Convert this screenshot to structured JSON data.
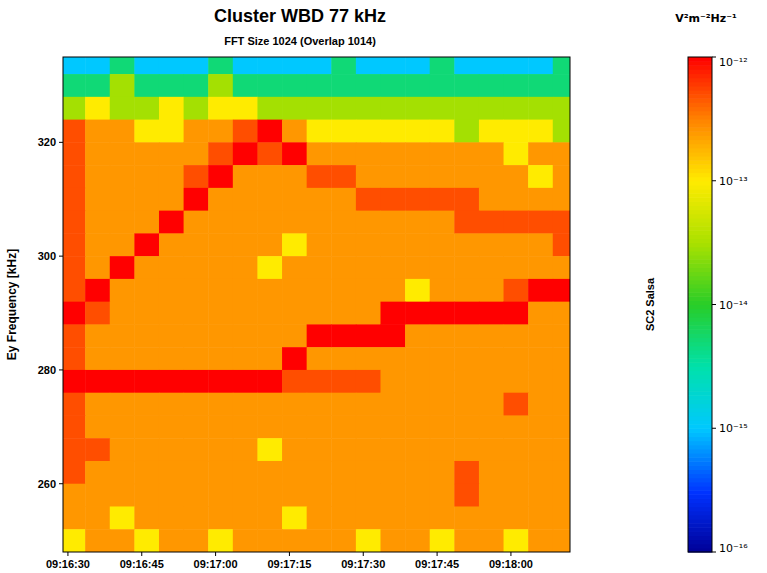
{
  "chart_data": {
    "type": "heatmap",
    "title": "Cluster WBD 77 kHz",
    "subtitle": "FFT Size 1024 (Overlap 1014)",
    "y_label": "Ey Frequency [kHz]",
    "x": [
      33391,
      33396,
      33401,
      33406,
      33411,
      33416,
      33421,
      33426,
      33431,
      33436,
      33441,
      33446,
      33451,
      33456,
      33461,
      33466,
      33471,
      33476,
      33481,
      33486,
      33491
    ],
    "y": [
      334,
      330,
      326,
      322,
      318,
      314,
      310,
      306,
      302,
      298,
      294,
      290,
      286,
      282,
      278,
      274,
      270,
      266,
      262,
      258,
      254,
      250
    ],
    "values": [
      [
        1e-15,
        1e-15,
        5e-15,
        1e-15,
        1e-15,
        1e-15,
        5e-15,
        1e-15,
        1e-15,
        1e-15,
        1e-15,
        5e-15,
        1e-15,
        1e-15,
        1e-15,
        5e-15,
        1e-15,
        1e-15,
        1e-15,
        1e-15,
        5e-15
      ],
      [
        5e-15,
        5e-15,
        3e-14,
        5e-15,
        5e-15,
        5e-15,
        3e-14,
        5e-15,
        5e-15,
        5e-15,
        5e-15,
        5e-15,
        5e-15,
        5e-15,
        5e-15,
        5e-15,
        5e-15,
        5e-15,
        5e-15,
        5e-15,
        5e-15
      ],
      [
        3e-14,
        1e-13,
        3e-14,
        3e-14,
        1e-13,
        3e-14,
        1e-13,
        1e-13,
        3e-14,
        3e-14,
        3e-14,
        3e-14,
        3e-14,
        3e-14,
        3e-14,
        3e-14,
        3e-14,
        3e-14,
        3e-14,
        3e-14,
        3e-14
      ],
      [
        5e-13,
        2.5e-13,
        2.5e-13,
        1e-13,
        1e-13,
        2.5e-13,
        2.5e-13,
        5e-13,
        1e-12,
        2.5e-13,
        1e-13,
        1e-13,
        1e-13,
        1e-13,
        1e-13,
        1e-13,
        3e-14,
        1e-13,
        1e-13,
        1e-13,
        3e-14
      ],
      [
        5e-13,
        2.5e-13,
        2.5e-13,
        2.5e-13,
        2.5e-13,
        2.5e-13,
        5e-13,
        1e-12,
        5e-13,
        1e-12,
        2.5e-13,
        2.5e-13,
        2.5e-13,
        2.5e-13,
        2.5e-13,
        2.5e-13,
        2.5e-13,
        2.5e-13,
        1e-13,
        2.5e-13,
        2.5e-13
      ],
      [
        5e-13,
        2.5e-13,
        2.5e-13,
        2.5e-13,
        2.5e-13,
        5e-13,
        1e-12,
        2.5e-13,
        2.5e-13,
        2.5e-13,
        5e-13,
        5e-13,
        2.5e-13,
        2.5e-13,
        2.5e-13,
        2.5e-13,
        2.5e-13,
        2.5e-13,
        2.5e-13,
        1e-13,
        2.5e-13
      ],
      [
        5e-13,
        2.5e-13,
        2.5e-13,
        2.5e-13,
        2.5e-13,
        1e-12,
        2.5e-13,
        2.5e-13,
        2.5e-13,
        2.5e-13,
        2.5e-13,
        2.5e-13,
        5e-13,
        5e-13,
        5e-13,
        5e-13,
        5e-13,
        2.5e-13,
        2.5e-13,
        2.5e-13,
        2.5e-13
      ],
      [
        5e-13,
        2.5e-13,
        2.5e-13,
        2.5e-13,
        1e-12,
        2.5e-13,
        2.5e-13,
        2.5e-13,
        2.5e-13,
        2.5e-13,
        2.5e-13,
        2.5e-13,
        2.5e-13,
        2.5e-13,
        2.5e-13,
        2.5e-13,
        5e-13,
        5e-13,
        5e-13,
        5e-13,
        5e-13
      ],
      [
        5e-13,
        2.5e-13,
        2.5e-13,
        1e-12,
        2.5e-13,
        2.5e-13,
        2.5e-13,
        2.5e-13,
        2.5e-13,
        1e-13,
        2.5e-13,
        2.5e-13,
        2.5e-13,
        2.5e-13,
        2.5e-13,
        2.5e-13,
        2.5e-13,
        2.5e-13,
        2.5e-13,
        2.5e-13,
        5e-13
      ],
      [
        5e-13,
        2.5e-13,
        1e-12,
        2.5e-13,
        2.5e-13,
        2.5e-13,
        2.5e-13,
        2.5e-13,
        1e-13,
        2.5e-13,
        2.5e-13,
        2.5e-13,
        2.5e-13,
        2.5e-13,
        2.5e-13,
        2.5e-13,
        2.5e-13,
        2.5e-13,
        2.5e-13,
        2.5e-13,
        2.5e-13
      ],
      [
        5e-13,
        1e-12,
        2.5e-13,
        2.5e-13,
        2.5e-13,
        2.5e-13,
        2.5e-13,
        2.5e-13,
        2.5e-13,
        2.5e-13,
        2.5e-13,
        2.5e-13,
        2.5e-13,
        2.5e-13,
        1e-13,
        2.5e-13,
        2.5e-13,
        2.5e-13,
        5e-13,
        1e-12,
        1e-12
      ],
      [
        1e-12,
        5e-13,
        2.5e-13,
        2.5e-13,
        2.5e-13,
        2.5e-13,
        2.5e-13,
        2.5e-13,
        2.5e-13,
        2.5e-13,
        2.5e-13,
        2.5e-13,
        2.5e-13,
        1e-12,
        1e-12,
        1e-12,
        1e-12,
        1e-12,
        1e-12,
        2.5e-13,
        2.5e-13
      ],
      [
        5e-13,
        2.5e-13,
        2.5e-13,
        2.5e-13,
        2.5e-13,
        2.5e-13,
        2.5e-13,
        2.5e-13,
        2.5e-13,
        2.5e-13,
        1e-12,
        1e-12,
        1e-12,
        1e-12,
        2.5e-13,
        2.5e-13,
        2.5e-13,
        2.5e-13,
        2.5e-13,
        2.5e-13,
        2.5e-13
      ],
      [
        5e-13,
        2.5e-13,
        2.5e-13,
        2.5e-13,
        2.5e-13,
        2.5e-13,
        2.5e-13,
        2.5e-13,
        2.5e-13,
        1e-12,
        2.5e-13,
        2.5e-13,
        2.5e-13,
        2.5e-13,
        2.5e-13,
        2.5e-13,
        2.5e-13,
        2.5e-13,
        2.5e-13,
        2.5e-13,
        2.5e-13
      ],
      [
        1e-12,
        1e-12,
        1e-12,
        1e-12,
        1e-12,
        1e-12,
        1e-12,
        1e-12,
        1e-12,
        5e-13,
        5e-13,
        5e-13,
        5e-13,
        2.5e-13,
        2.5e-13,
        2.5e-13,
        2.5e-13,
        2.5e-13,
        2.5e-13,
        2.5e-13,
        2.5e-13
      ],
      [
        5e-13,
        2.5e-13,
        2.5e-13,
        2.5e-13,
        2.5e-13,
        2.5e-13,
        2.5e-13,
        2.5e-13,
        2.5e-13,
        2.5e-13,
        2.5e-13,
        2.5e-13,
        2.5e-13,
        2.5e-13,
        2.5e-13,
        2.5e-13,
        2.5e-13,
        2.5e-13,
        5e-13,
        2.5e-13,
        2.5e-13
      ],
      [
        5e-13,
        2.5e-13,
        2.5e-13,
        2.5e-13,
        2.5e-13,
        2.5e-13,
        2.5e-13,
        2.5e-13,
        2.5e-13,
        2.5e-13,
        2.5e-13,
        2.5e-13,
        2.5e-13,
        2.5e-13,
        2.5e-13,
        2.5e-13,
        2.5e-13,
        2.5e-13,
        2.5e-13,
        2.5e-13,
        2.5e-13
      ],
      [
        5e-13,
        5e-13,
        2.5e-13,
        2.5e-13,
        2.5e-13,
        2.5e-13,
        2.5e-13,
        2.5e-13,
        1e-13,
        2.5e-13,
        2.5e-13,
        2.5e-13,
        2.5e-13,
        2.5e-13,
        2.5e-13,
        2.5e-13,
        2.5e-13,
        2.5e-13,
        2.5e-13,
        2.5e-13,
        2.5e-13
      ],
      [
        5e-13,
        2.5e-13,
        2.5e-13,
        2.5e-13,
        2.5e-13,
        2.5e-13,
        2.5e-13,
        2.5e-13,
        2.5e-13,
        2.5e-13,
        2.5e-13,
        2.5e-13,
        2.5e-13,
        2.5e-13,
        2.5e-13,
        2.5e-13,
        5e-13,
        2.5e-13,
        2.5e-13,
        2.5e-13,
        2.5e-13
      ],
      [
        2.5e-13,
        2.5e-13,
        2.5e-13,
        2.5e-13,
        2.5e-13,
        2.5e-13,
        2.5e-13,
        2.5e-13,
        2.5e-13,
        2.5e-13,
        2.5e-13,
        2.5e-13,
        2.5e-13,
        2.5e-13,
        2.5e-13,
        2.5e-13,
        5e-13,
        2.5e-13,
        2.5e-13,
        2.5e-13,
        2.5e-13
      ],
      [
        2.5e-13,
        2.5e-13,
        1e-13,
        2.5e-13,
        2.5e-13,
        2.5e-13,
        2.5e-13,
        2.5e-13,
        2.5e-13,
        1e-13,
        2.5e-13,
        2.5e-13,
        2.5e-13,
        2.5e-13,
        2.5e-13,
        2.5e-13,
        2.5e-13,
        2.5e-13,
        2.5e-13,
        2.5e-13,
        2.5e-13
      ],
      [
        1e-13,
        2.5e-13,
        2.5e-13,
        1e-13,
        2.5e-13,
        2.5e-13,
        1e-13,
        2.5e-13,
        2.5e-13,
        2.5e-13,
        2.5e-13,
        2.5e-13,
        1e-13,
        2.5e-13,
        2.5e-13,
        1e-13,
        2.5e-13,
        2.5e-13,
        1e-13,
        2.5e-13,
        2.5e-13
      ]
    ],
    "xlim": [
      33389,
      33492
    ],
    "xticks": [
      {
        "value": 33390,
        "label": "09:16:30"
      },
      {
        "value": 33405,
        "label": "09:16:45"
      },
      {
        "value": 33420,
        "label": "09:17:00"
      },
      {
        "value": 33435,
        "label": "09:17:15"
      },
      {
        "value": 33450,
        "label": "09:17:30"
      },
      {
        "value": 33465,
        "label": "09:17:45"
      },
      {
        "value": 33480,
        "label": "09:18:00"
      }
    ],
    "ylim": [
      248,
      335
    ],
    "yticks": [
      260,
      280,
      300,
      320
    ],
    "colorbar_range": [
      1e-16,
      1e-12
    ],
    "colorbar_ticks": [
      {
        "value": 1e-12,
        "label": "10⁻¹²"
      },
      {
        "value": 1e-13,
        "label": "10⁻¹³"
      },
      {
        "value": 1e-14,
        "label": "10⁻¹⁴"
      },
      {
        "value": 1e-15,
        "label": "10⁻¹⁵"
      },
      {
        "value": 1e-16,
        "label": "10⁻¹⁶"
      }
    ],
    "colorbar_label": "V²m⁻²Hz⁻¹",
    "colorbar_title": "SC2 Salsa"
  }
}
